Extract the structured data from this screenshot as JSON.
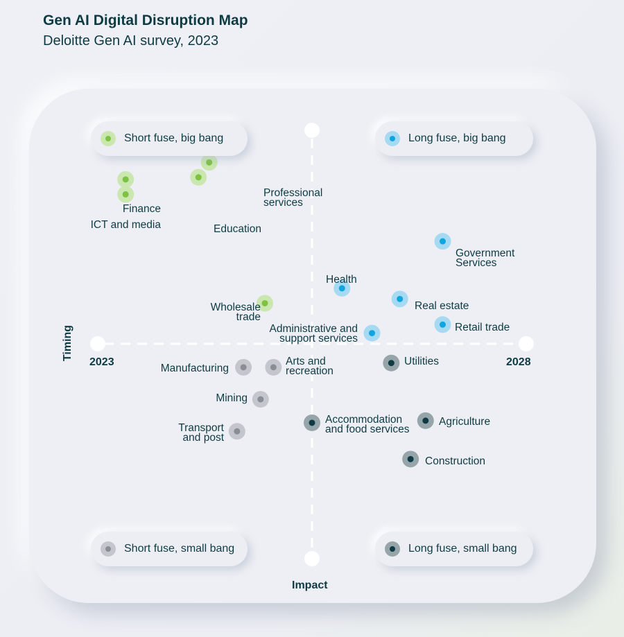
{
  "header": {
    "title": "Gen AI Digital Disruption Map",
    "subtitle": "Deloitte Gen AI survey, 2023"
  },
  "colors": {
    "short_fuse_big_bang": "#7dc242",
    "long_fuse_big_bang": "#0fa5de",
    "short_fuse_small_bang": "#8a8e94",
    "long_fuse_small_bang": "#0e3b43",
    "axis": "#ffffff",
    "text": "#0e3b43"
  },
  "legend": {
    "short_fuse_big_bang": "Short fuse, big bang",
    "long_fuse_big_bang": "Long fuse, big bang",
    "short_fuse_small_bang": "Short fuse, small bang",
    "long_fuse_small_bang": "Long fuse, small bang"
  },
  "chart_data": {
    "type": "scatter",
    "xlabel": "Impact",
    "ylabel": "Timing",
    "x_tick_labels": [
      "2023",
      "2028"
    ],
    "grid": false,
    "points": [
      {
        "label": "Professional services",
        "group": "short_fuse_big_bang",
        "x": -0.48,
        "y": 0.85
      },
      {
        "label": "Finance",
        "group": "short_fuse_big_bang",
        "x": -0.87,
        "y": 0.77
      },
      {
        "label": "Education",
        "group": "short_fuse_big_bang",
        "x": -0.53,
        "y": 0.78
      },
      {
        "label": "ICT and media",
        "group": "short_fuse_big_bang",
        "x": -0.87,
        "y": 0.7
      },
      {
        "label": "Wholesale trade",
        "group": "short_fuse_big_bang",
        "x": -0.22,
        "y": 0.19
      },
      {
        "label": "Government Services",
        "group": "long_fuse_big_bang",
        "x": 0.61,
        "y": 0.48
      },
      {
        "label": "Health",
        "group": "long_fuse_big_bang",
        "x": 0.14,
        "y": 0.26
      },
      {
        "label": "Real estate",
        "group": "long_fuse_big_bang",
        "x": 0.41,
        "y": 0.21
      },
      {
        "label": "Retail trade",
        "group": "long_fuse_big_bang",
        "x": 0.61,
        "y": 0.09
      },
      {
        "label": "Administrative and support services",
        "group": "long_fuse_big_bang",
        "x": 0.28,
        "y": 0.05
      },
      {
        "label": "Manufacturing",
        "group": "short_fuse_small_bang",
        "x": -0.32,
        "y": -0.11
      },
      {
        "label": "Arts and recreation",
        "group": "short_fuse_small_bang",
        "x": -0.18,
        "y": -0.11
      },
      {
        "label": "Mining",
        "group": "short_fuse_small_bang",
        "x": -0.24,
        "y": -0.26
      },
      {
        "label": "Transport and post",
        "group": "short_fuse_small_bang",
        "x": -0.35,
        "y": -0.41
      },
      {
        "label": "Utilities",
        "group": "long_fuse_small_bang",
        "x": 0.37,
        "y": -0.09
      },
      {
        "label": "Accommodation and food services",
        "group": "long_fuse_small_bang",
        "x": 0.0,
        "y": -0.37
      },
      {
        "label": "Agriculture",
        "group": "long_fuse_small_bang",
        "x": 0.53,
        "y": -0.36
      },
      {
        "label": "Construction",
        "group": "long_fuse_small_bang",
        "x": 0.46,
        "y": -0.54
      }
    ]
  }
}
